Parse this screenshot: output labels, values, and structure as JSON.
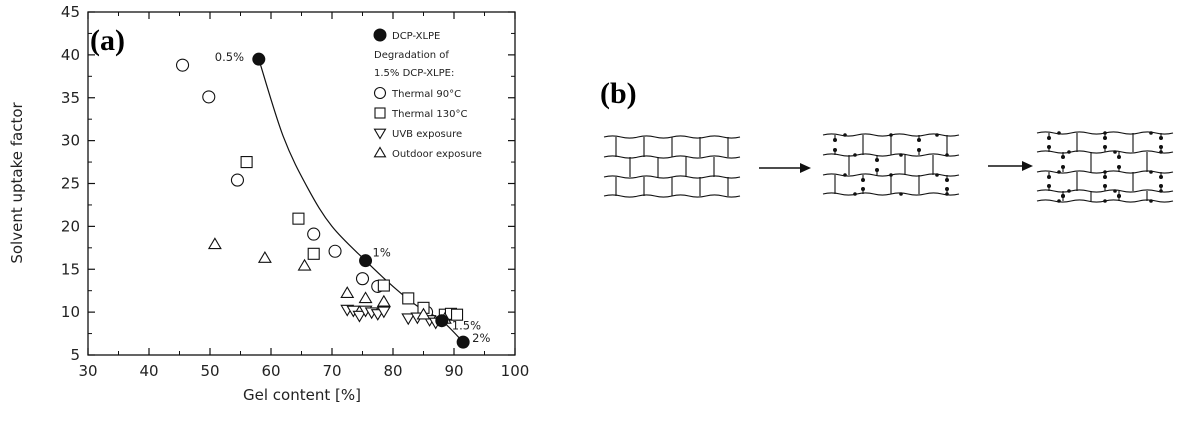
{
  "figure": {
    "panel_a_label": "(a)",
    "panel_b_label": "(b)"
  },
  "chart_data": {
    "type": "scatter",
    "xlabel": "Gel content [%]",
    "ylabel": "Solvent uptake factor",
    "xlim": [
      30,
      100
    ],
    "ylim": [
      5,
      45
    ],
    "xticks": [
      30,
      40,
      50,
      60,
      70,
      80,
      90,
      100
    ],
    "yticks": [
      5,
      10,
      15,
      20,
      25,
      30,
      35,
      40,
      45
    ],
    "grid": false,
    "legend_position": "top-right",
    "legend_heading": "Degradation of\n1.5% DCP-XLPE:",
    "series": [
      {
        "name": "DCP-XLPE",
        "marker": "filled-circle",
        "points": [
          [
            58,
            39.5
          ],
          [
            75.5,
            16
          ],
          [
            88,
            9
          ],
          [
            91.5,
            6.5
          ]
        ],
        "labels": [
          "0.5%",
          "1%",
          "1.5%",
          "2%"
        ],
        "fit_curve": [
          [
            58,
            39.5
          ],
          [
            62,
            30.5
          ],
          [
            66,
            24.5
          ],
          [
            70,
            20
          ],
          [
            75.5,
            16
          ],
          [
            80,
            13
          ],
          [
            84,
            10.7
          ],
          [
            88,
            9
          ],
          [
            91.5,
            6.5
          ]
        ]
      },
      {
        "name": "Thermal 90°C",
        "marker": "open-circle",
        "points": [
          [
            45.5,
            38.8
          ],
          [
            49.8,
            35.1
          ],
          [
            54.5,
            25.4
          ],
          [
            67,
            19.1
          ],
          [
            70.5,
            17.1
          ],
          [
            75,
            13.9
          ],
          [
            77.5,
            13.0
          ],
          [
            85.5,
            10.0
          ]
        ]
      },
      {
        "name": "Thermal 130°C",
        "marker": "open-square",
        "points": [
          [
            56,
            27.5
          ],
          [
            64.5,
            20.9
          ],
          [
            67,
            16.8
          ],
          [
            78.5,
            13.1
          ],
          [
            82.5,
            11.6
          ],
          [
            85,
            10.5
          ],
          [
            88.5,
            9.7
          ],
          [
            89.5,
            9.8
          ],
          [
            90.5,
            9.7
          ]
        ]
      },
      {
        "name": "UVB exposure",
        "marker": "open-triangle-down",
        "points": [
          [
            72.5,
            10.3
          ],
          [
            73.5,
            10.2
          ],
          [
            74.5,
            9.6
          ],
          [
            75.5,
            10.2
          ],
          [
            76.5,
            10.0
          ],
          [
            77.5,
            9.8
          ],
          [
            78.5,
            10.1
          ],
          [
            82.5,
            9.3
          ],
          [
            84,
            9.4
          ],
          [
            86,
            9.1
          ],
          [
            87,
            8.8
          ]
        ]
      },
      {
        "name": "Outdoor exposure",
        "marker": "open-triangle-up",
        "points": [
          [
            50.8,
            17.9
          ],
          [
            59,
            16.3
          ],
          [
            65.5,
            15.4
          ],
          [
            72.5,
            12.2
          ],
          [
            75.5,
            11.6
          ],
          [
            78.5,
            11.2
          ],
          [
            85,
            9.7
          ],
          [
            88.5,
            9.2
          ]
        ]
      }
    ]
  },
  "colors": {
    "ink": "#111111",
    "paper": "#ffffff"
  }
}
